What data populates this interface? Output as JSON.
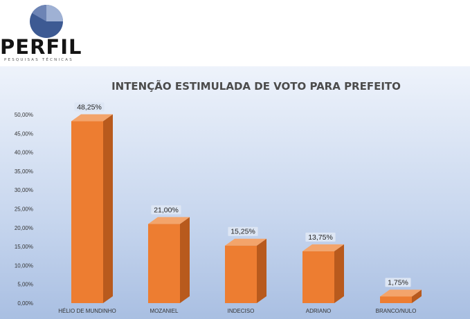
{
  "logo": {
    "name": "PERFIL",
    "tagline": "PESQUISAS TÉCNICAS",
    "colors": {
      "pie_dark": "#3d5a93",
      "pie_light": "#9fb1d4",
      "pie_mid": "#6d84b5"
    }
  },
  "chart_data": {
    "type": "bar",
    "title": "INTENÇÃO ESTIMULADA DE VOTO PARA PREFEITO",
    "xlabel": "",
    "ylabel": "",
    "categories": [
      "HÉLIO DE MUNDINHO",
      "MOZANIEL",
      "INDECISO",
      "ADRIANO",
      "BRANCO/NULO"
    ],
    "values": [
      48.25,
      21.0,
      15.25,
      13.75,
      1.75
    ],
    "data_labels": [
      "48,25%",
      "21,00%",
      "15,25%",
      "13,75%",
      "1,75%"
    ],
    "ylim": [
      0,
      50
    ],
    "y_ticks": [
      "0,00%",
      "5,00%",
      "10,00%",
      "15,00%",
      "20,00%",
      "25,00%",
      "30,00%",
      "35,00%",
      "40,00%",
      "45,00%",
      "50,00%"
    ],
    "grid": false,
    "legend": "none",
    "style": "3d",
    "colors": {
      "bar_front": "#ed7d31",
      "bar_side": "#b85a1d",
      "bar_top": "#f3a46b",
      "label_bg": "#dde6f4"
    }
  }
}
